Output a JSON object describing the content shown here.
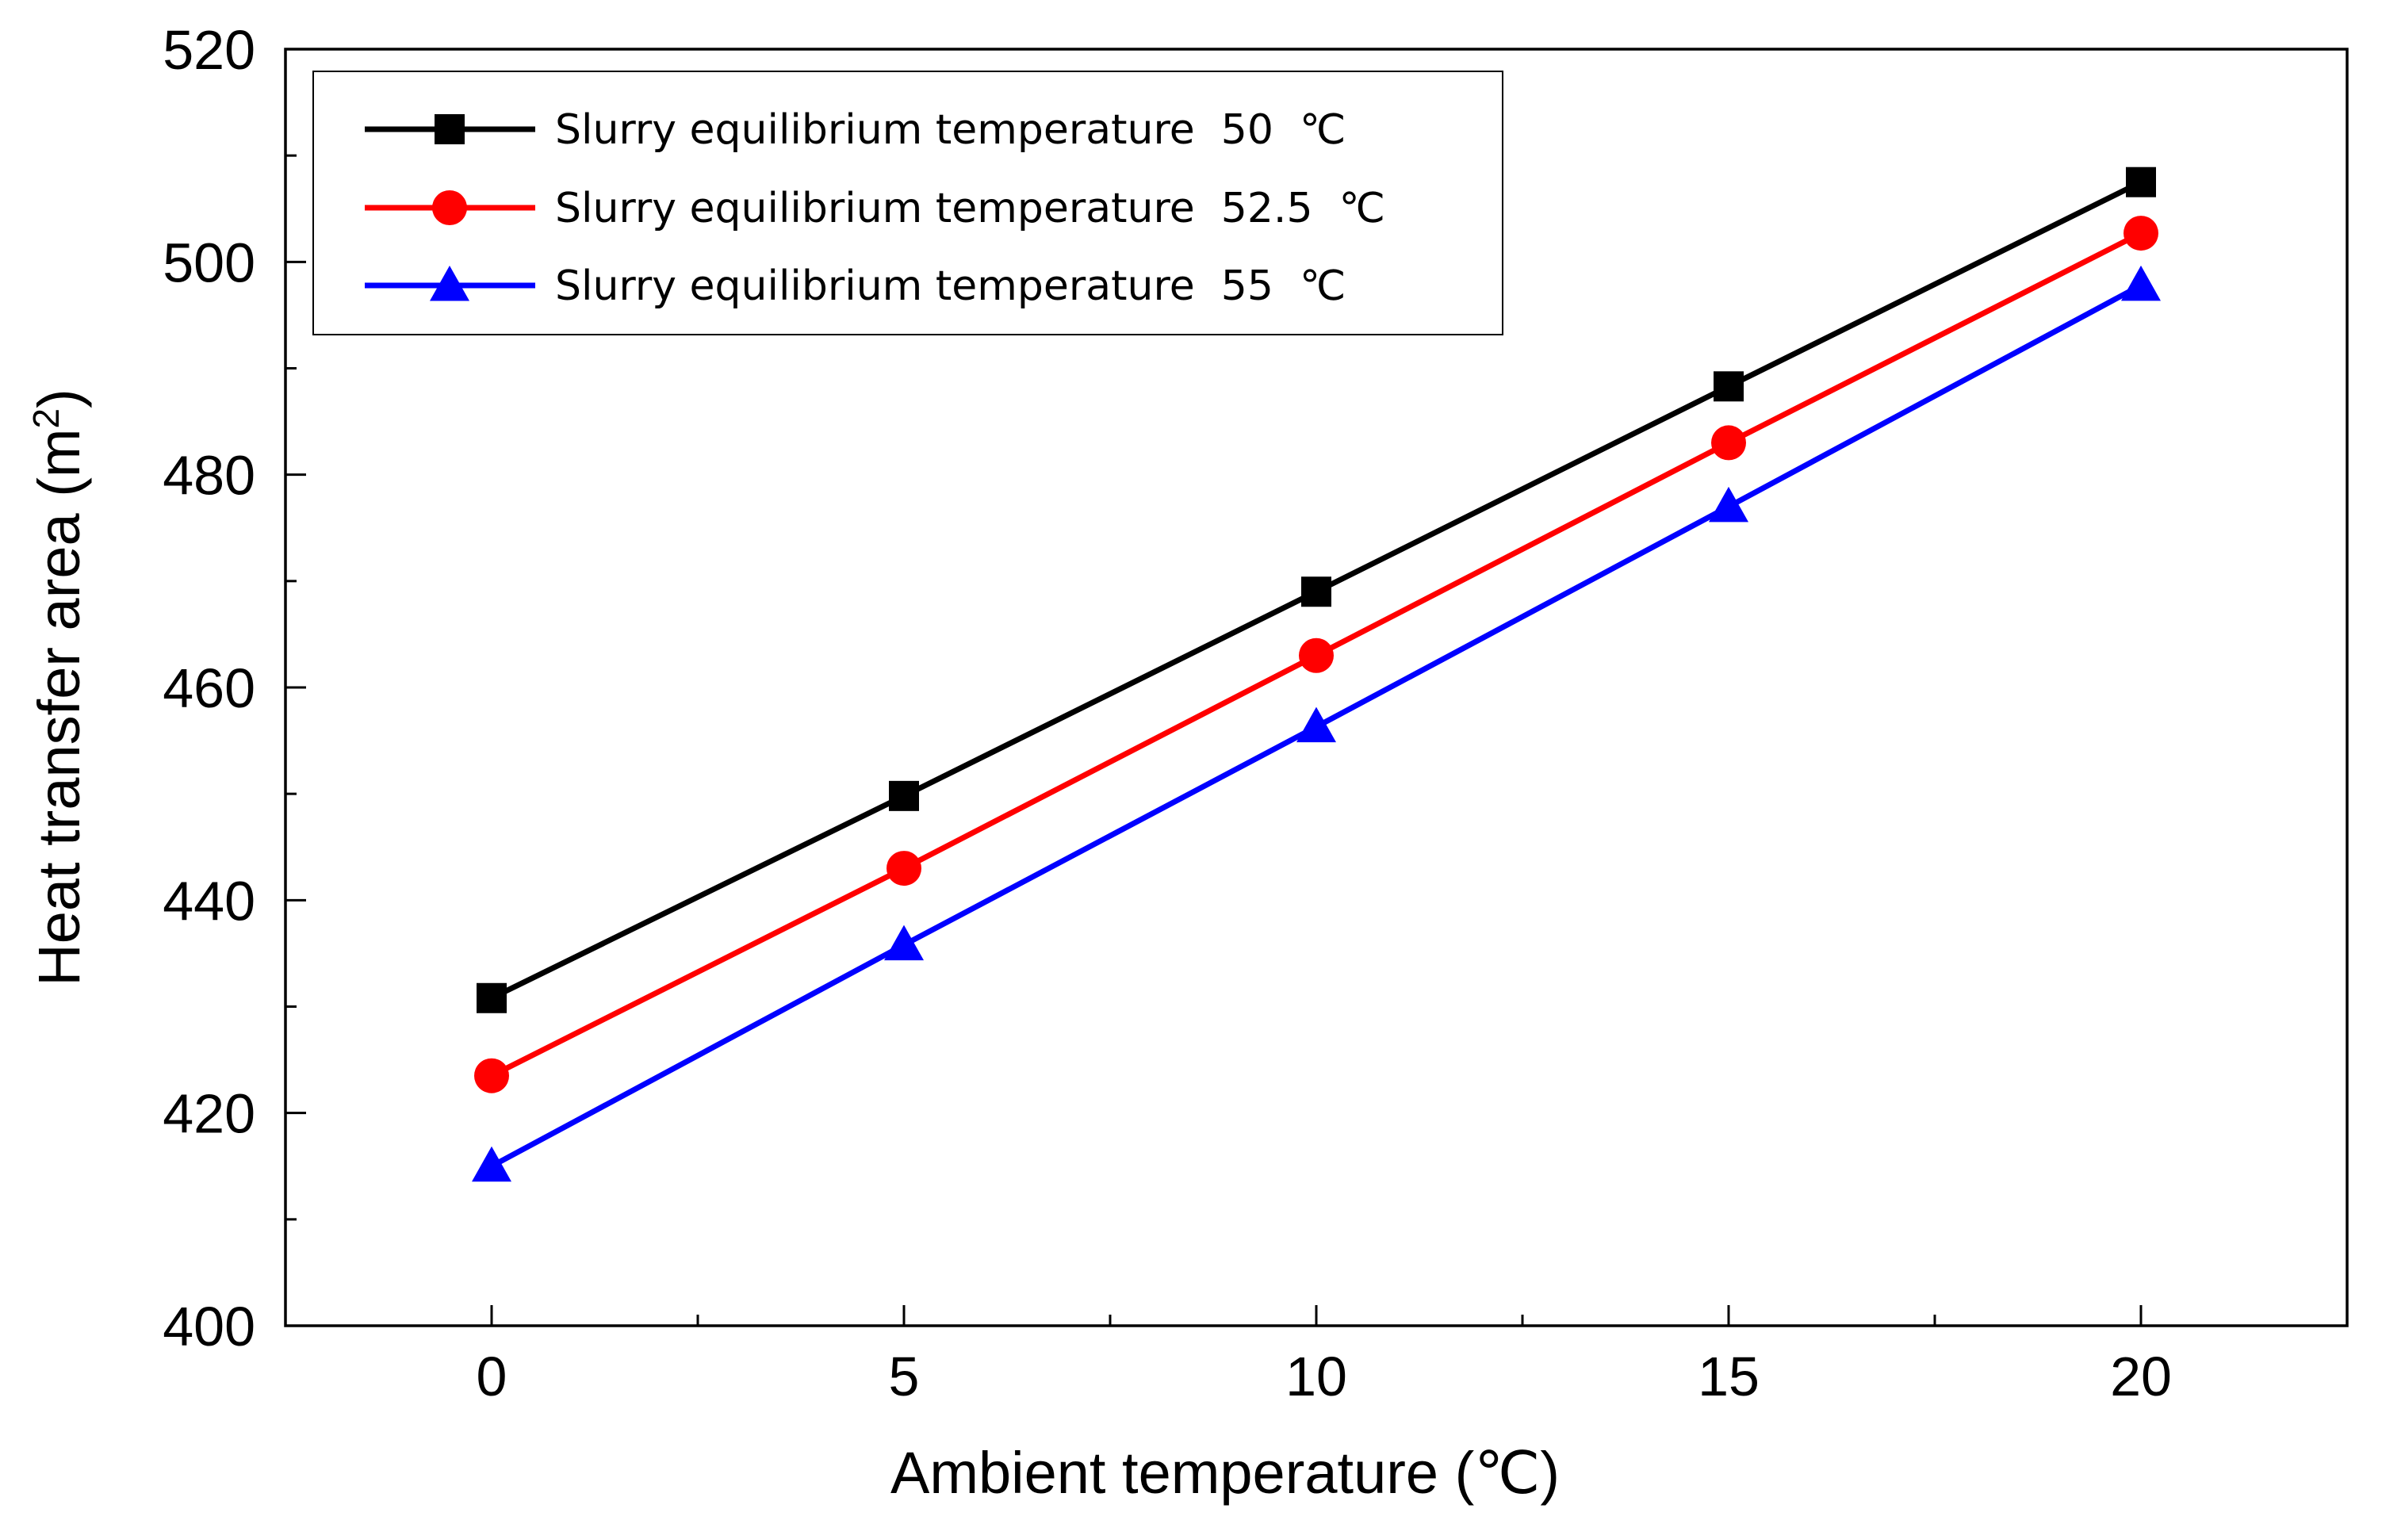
{
  "chart_data": {
    "type": "line",
    "title": "",
    "xlabel": "Ambient temperature (℃)",
    "ylabel_main": "Heat transfer area (m",
    "ylabel_sup": "2",
    "ylabel_close": ")",
    "xlim": [
      -2.5,
      22.5
    ],
    "ylim": [
      400,
      520
    ],
    "x_major_ticks": [
      0,
      5,
      10,
      15,
      20
    ],
    "x_minor_ticks": [
      2.5,
      7.5,
      12.5,
      17.5
    ],
    "y_major_ticks": [
      400,
      420,
      440,
      460,
      480,
      500,
      520
    ],
    "y_minor_ticks": [
      410,
      430,
      450,
      470,
      490,
      510
    ],
    "x_tick_labels": [
      "0",
      "5",
      "10",
      "15",
      "20"
    ],
    "y_tick_labels": [
      "400",
      "420",
      "440",
      "460",
      "480",
      "500",
      "520"
    ],
    "x": [
      0,
      5,
      10,
      15,
      20
    ],
    "legend_position": "top-left",
    "series": [
      {
        "name": "Slurry equilibrium temperature  50  ℃",
        "color": "#000000",
        "marker": "square",
        "values": [
          430.8,
          449.8,
          469.0,
          488.3,
          507.5
        ]
      },
      {
        "name": "Slurry equilibrium temperature  52.5  ℃",
        "color": "#ff0000",
        "marker": "circle",
        "values": [
          423.5,
          443.0,
          463.0,
          483.0,
          502.7
        ]
      },
      {
        "name": "Slurry equilibrium temperature  55  ℃",
        "color": "#0000ff",
        "marker": "triangle",
        "values": [
          415.0,
          435.8,
          456.3,
          477.0,
          497.8
        ]
      }
    ]
  }
}
